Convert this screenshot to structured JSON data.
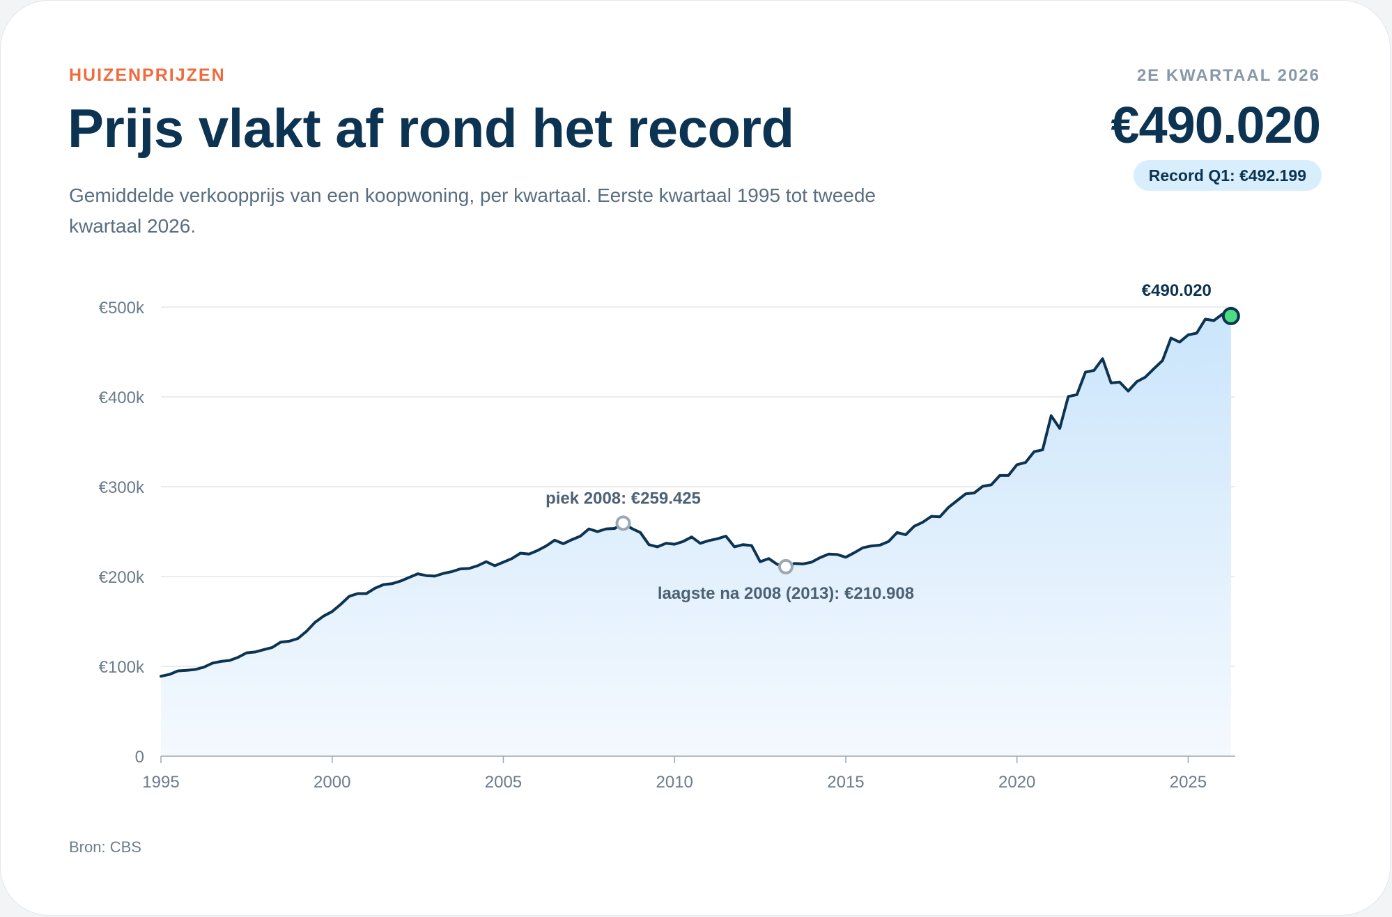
{
  "header": {
    "eyebrow": "HUIZENPRIJZEN",
    "title": "Prijs vlakt af rond het record",
    "subtitle": "Gemiddelde verkoopprijs van een koopwoning, per kwartaal. Eerste kwartaal 1995 tot tweede kwartaal 2026."
  },
  "summary": {
    "period": "2E KWARTAAL 2026",
    "value": "€490.020",
    "record_badge": "Record Q1: €492.199"
  },
  "footer": {
    "source": "Bron: CBS"
  },
  "colors": {
    "line": "#0d3352",
    "area_top": "#cbe5fb",
    "area_bottom": "#f4f9fe",
    "accent": "#f06a3d",
    "last_point": "#4ade80",
    "grid": "#e3e6ea"
  },
  "chart_data": {
    "type": "area",
    "title": "Prijs vlakt af rond het record",
    "xlabel": "",
    "ylabel": "",
    "xlim": [
      1995,
      2026.375
    ],
    "ylim": [
      0,
      500000
    ],
    "grid": true,
    "y_ticks": [
      {
        "value": 0,
        "label": "0"
      },
      {
        "value": 100000,
        "label": "€100k"
      },
      {
        "value": 200000,
        "label": "€200k"
      },
      {
        "value": 300000,
        "label": "€300k"
      },
      {
        "value": 400000,
        "label": "€400k"
      },
      {
        "value": 500000,
        "label": "€500k"
      }
    ],
    "x_ticks": [
      {
        "value": 1995,
        "label": "1995"
      },
      {
        "value": 2000,
        "label": "2000"
      },
      {
        "value": 2005,
        "label": "2005"
      },
      {
        "value": 2010,
        "label": "2010"
      },
      {
        "value": 2015,
        "label": "2015"
      },
      {
        "value": 2020,
        "label": "2020"
      },
      {
        "value": 2025,
        "label": "2025"
      }
    ],
    "series": [
      {
        "name": "",
        "start": "1995-Q1",
        "values": [
          89000,
          91000,
          95000,
          95500,
          96500,
          99000,
          103500,
          105500,
          106500,
          110000,
          115000,
          116000,
          118500,
          121000,
          127000,
          128000,
          131000,
          139000,
          149000,
          156000,
          161000,
          169000,
          178000,
          181000,
          181000,
          187000,
          191000,
          192000,
          195000,
          199000,
          203000,
          201000,
          200500,
          203500,
          205500,
          208500,
          209000,
          212000,
          216500,
          212000,
          216000,
          220000,
          226000,
          225000,
          229000,
          234000,
          240500,
          236500,
          241000,
          245000,
          253000,
          250000,
          253000,
          253500,
          259425,
          253500,
          249000,
          235500,
          233000,
          237000,
          236000,
          239000,
          244000,
          237000,
          240000,
          242000,
          245000,
          233000,
          235500,
          234500,
          216500,
          220000,
          213500,
          210908,
          214500,
          214000,
          216000,
          221000,
          225000,
          224500,
          221500,
          226500,
          232000,
          234000,
          235000,
          239000,
          249000,
          246500,
          256000,
          260500,
          267000,
          266500,
          277000,
          284500,
          292000,
          293000,
          300500,
          302000,
          312500,
          312500,
          324500,
          327000,
          339000,
          341000,
          379000,
          365000,
          400500,
          402500,
          427500,
          429500,
          442500,
          415500,
          416500,
          406500,
          417000,
          422000,
          431500,
          440500,
          465500,
          461000,
          469000,
          471000,
          486500,
          485000,
          492199,
          490020
        ]
      }
    ],
    "annotations": [
      {
        "x": 2008.5,
        "y": 259425,
        "label": "piek 2008: €259.425",
        "position": "above"
      },
      {
        "x": 2013.25,
        "y": 210908,
        "label": "laagste na 2008 (2013): €210.908",
        "position": "below"
      },
      {
        "x": 2026.25,
        "y": 490020,
        "label": "€490.020",
        "position": "above-left",
        "highlight": true
      }
    ]
  }
}
